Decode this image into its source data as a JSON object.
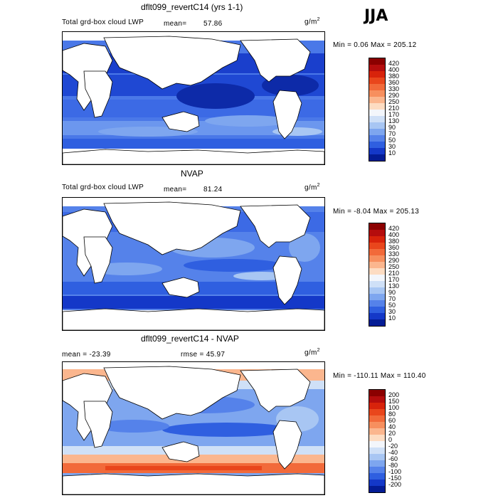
{
  "season": "JJA",
  "panels": [
    {
      "title": "dflt099_revertC14 (yrs 1-1)",
      "left_label": "Total grd-box cloud LWP",
      "mean_label": "mean=",
      "mean_value": "57.86",
      "units_base": "g/m",
      "units_sup": "2",
      "stats": "Min =   0.06 Max = 205.12",
      "colorbar_labels": [
        "420",
        "400",
        "380",
        "360",
        "330",
        "290",
        "250",
        "210",
        "170",
        "130",
        "90",
        "70",
        "50",
        "30",
        "10"
      ],
      "colorbar_colors": [
        "#8b0000",
        "#b50d0d",
        "#d8230b",
        "#e9461c",
        "#f26a3a",
        "#f78f5e",
        "#fbb68e",
        "#fddcc2",
        "#f3f6fb",
        "#cfe0f7",
        "#a8c6f3",
        "#7ea6ef",
        "#5582ea",
        "#2f5fe0",
        "#1438c8",
        "#041c95"
      ]
    },
    {
      "title": "NVAP",
      "left_label": "Total grd-box cloud LWP",
      "mean_label": "mean=",
      "mean_value": "81.24",
      "units_base": "g/m",
      "units_sup": "2",
      "stats": "Min =  -8.04 Max = 205.13",
      "colorbar_labels": [
        "420",
        "400",
        "380",
        "360",
        "330",
        "290",
        "250",
        "210",
        "170",
        "130",
        "90",
        "70",
        "50",
        "30",
        "10"
      ],
      "colorbar_colors": [
        "#8b0000",
        "#b50d0d",
        "#d8230b",
        "#e9461c",
        "#f26a3a",
        "#f78f5e",
        "#fbb68e",
        "#fddcc2",
        "#f3f6fb",
        "#cfe0f7",
        "#a8c6f3",
        "#7ea6ef",
        "#5582ea",
        "#2f5fe0",
        "#1438c8",
        "#041c95"
      ]
    },
    {
      "title": "dflt099_revertC14 - NVAP",
      "left_label": "mean = -23.39",
      "rmse_label": "rmse =  45.97",
      "units_base": "g/m",
      "units_sup": "2",
      "stats": "Min = -110.11 Max = 110.40",
      "colorbar_labels": [
        "200",
        "150",
        "100",
        "80",
        "60",
        "40",
        "20",
        "0",
        "-20",
        "-40",
        "-60",
        "-80",
        "-100",
        "-150",
        "-200"
      ],
      "colorbar_colors": [
        "#8b0000",
        "#b50d0d",
        "#d8230b",
        "#e9461c",
        "#f26a3a",
        "#f78f5e",
        "#fbb68e",
        "#fddcc2",
        "#f3f6fb",
        "#cfe0f7",
        "#a8c6f3",
        "#7ea6ef",
        "#5582ea",
        "#2f5fe0",
        "#1438c8",
        "#041c95"
      ]
    }
  ]
}
